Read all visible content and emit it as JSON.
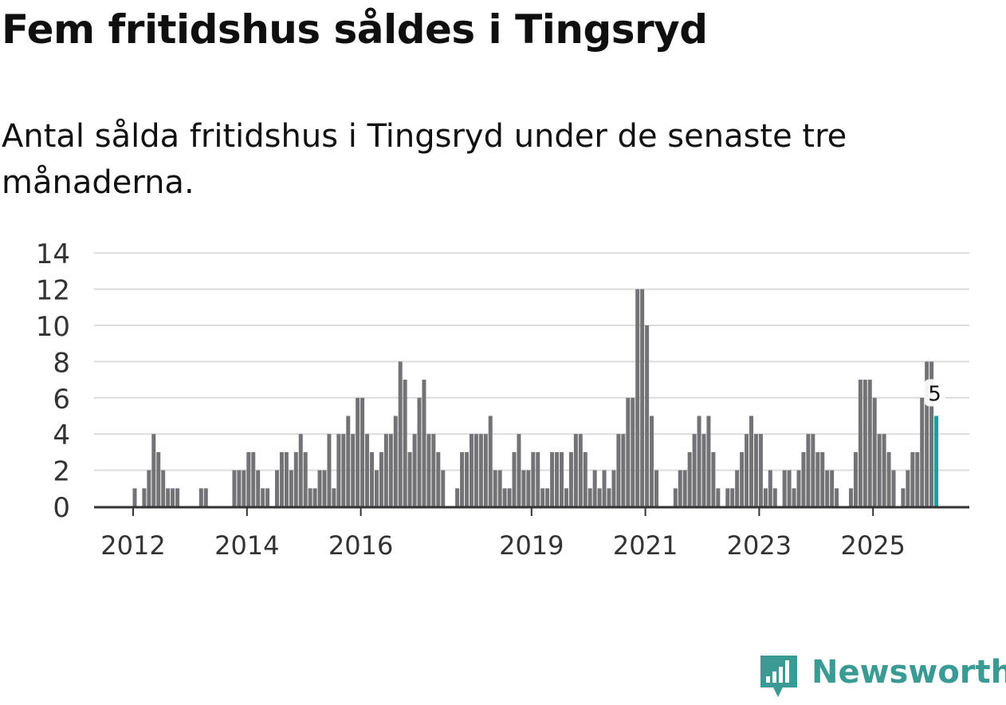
{
  "header": {
    "title": "Fem fritidshus såldes i Tingsryd",
    "subtitle": "Antal sålda fritidshus i Tingsryd under de senaste tre månaderna."
  },
  "brand": {
    "name": "Newsworthy",
    "color": "#3a9a94"
  },
  "colors": {
    "bar": "#737377",
    "highlight": "#17a0a0",
    "grid": "#dcdcdc",
    "axis": "#333333"
  },
  "chart_data": {
    "type": "bar",
    "title": "Fem fritidshus såldes i Tingsryd",
    "subtitle": "Antal sålda fritidshus i Tingsryd under de senaste tre månaderna.",
    "xlabel": "",
    "ylabel": "",
    "ylim": [
      0,
      14
    ],
    "yticks": [
      0,
      2,
      4,
      6,
      8,
      10,
      12,
      14
    ],
    "grid": true,
    "frequency": "monthly",
    "start": "2011-12",
    "xticks": [
      {
        "label": "2012",
        "index": 0
      },
      {
        "label": "2014",
        "index": 24
      },
      {
        "label": "2016",
        "index": 48
      },
      {
        "label": "2019",
        "index": 84
      },
      {
        "label": "2021",
        "index": 108
      },
      {
        "label": "2023",
        "index": 132
      },
      {
        "label": "2025",
        "index": 156
      }
    ],
    "values": [
      1,
      0,
      1,
      2,
      4,
      3,
      2,
      1,
      1,
      1,
      0,
      0,
      0,
      0,
      1,
      1,
      0,
      0,
      0,
      0,
      0,
      2,
      2,
      2,
      3,
      3,
      2,
      1,
      1,
      0,
      2,
      3,
      3,
      2,
      3,
      4,
      3,
      1,
      1,
      2,
      2,
      4,
      1,
      4,
      4,
      5,
      4,
      6,
      6,
      4,
      3,
      2,
      3,
      4,
      4,
      5,
      8,
      7,
      3,
      4,
      6,
      7,
      4,
      4,
      3,
      2,
      0,
      0,
      1,
      3,
      3,
      4,
      4,
      4,
      4,
      5,
      2,
      2,
      1,
      1,
      3,
      4,
      2,
      2,
      3,
      3,
      1,
      1,
      3,
      3,
      3,
      1,
      3,
      4,
      4,
      3,
      1,
      2,
      1,
      2,
      1,
      2,
      4,
      4,
      6,
      6,
      12,
      12,
      10,
      5,
      2,
      0,
      0,
      0,
      1,
      2,
      2,
      3,
      4,
      5,
      4,
      5,
      3,
      1,
      0,
      1,
      1,
      2,
      3,
      4,
      5,
      4,
      4,
      1,
      2,
      1,
      0,
      2,
      2,
      1,
      2,
      3,
      4,
      4,
      3,
      3,
      2,
      2,
      1,
      0,
      0,
      1,
      3,
      7,
      7,
      7,
      6,
      4,
      4,
      3,
      2,
      0,
      1,
      2,
      3,
      3,
      6,
      8,
      8,
      5
    ],
    "highlight": {
      "index": 169,
      "label": "5"
    }
  }
}
